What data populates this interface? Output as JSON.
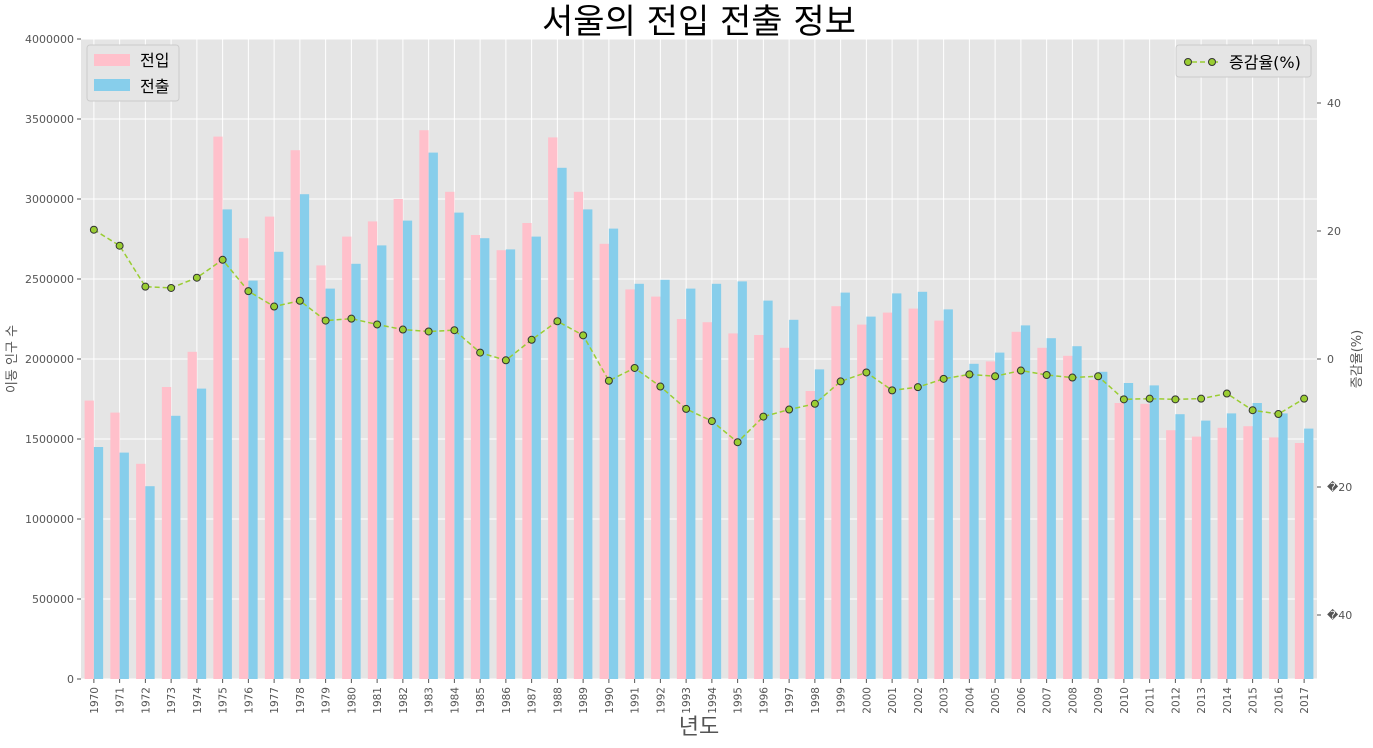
{
  "chart_data": {
    "type": "bar",
    "title": "서울의 전입 전출 정보",
    "xlabel": "년도",
    "ylabel": "이동 인구 수",
    "y2label": "증감율(%)",
    "ylim": [
      0,
      4000000
    ],
    "y2lim": [
      -50,
      50
    ],
    "yticks": [
      "0",
      "500000",
      "1000000",
      "1500000",
      "2000000",
      "2500000",
      "3000000",
      "3500000",
      "4000000"
    ],
    "y2ticks": [
      {
        "value": 40,
        "label": "40"
      },
      {
        "value": 20,
        "label": "20"
      },
      {
        "value": 0,
        "label": "0"
      },
      {
        "value": -20,
        "label": "�20"
      },
      {
        "value": -40,
        "label": "�40"
      }
    ],
    "grid": true,
    "categories": [
      "1970",
      "1971",
      "1972",
      "1973",
      "1974",
      "1975",
      "1976",
      "1977",
      "1978",
      "1979",
      "1980",
      "1981",
      "1982",
      "1983",
      "1984",
      "1985",
      "1986",
      "1987",
      "1988",
      "1989",
      "1990",
      "1991",
      "1992",
      "1993",
      "1994",
      "1995",
      "1996",
      "1997",
      "1998",
      "1999",
      "2000",
      "2001",
      "2002",
      "2003",
      "2004",
      "2005",
      "2006",
      "2007",
      "2008",
      "2009",
      "2010",
      "2011",
      "2012",
      "2013",
      "2014",
      "2015",
      "2016",
      "2017"
    ],
    "series": [
      {
        "name": "전입",
        "kind": "bar",
        "color": "#FFC0CB",
        "values": [
          1740000,
          1665000,
          1345000,
          1825000,
          2045000,
          3390000,
          2755000,
          2890000,
          3305000,
          2585000,
          2765000,
          2860000,
          3000000,
          3430000,
          3045000,
          2775000,
          2680000,
          2850000,
          3385000,
          3045000,
          2720000,
          2435000,
          2390000,
          2250000,
          2230000,
          2160000,
          2150000,
          2070000,
          1800000,
          2330000,
          2215000,
          2290000,
          2315000,
          2240000,
          1900000,
          1985000,
          2170000,
          2070000,
          2020000,
          1870000,
          1725000,
          1720000,
          1555000,
          1515000,
          1570000,
          1580000,
          1510000,
          1475000
        ]
      },
      {
        "name": "전출",
        "kind": "bar",
        "color": "#87CEEB",
        "values": [
          1450000,
          1415000,
          1205000,
          1645000,
          1815000,
          2935000,
          2490000,
          2670000,
          3030000,
          2440000,
          2595000,
          2710000,
          2865000,
          3290000,
          2915000,
          2755000,
          2685000,
          2765000,
          3195000,
          2935000,
          2815000,
          2470000,
          2495000,
          2440000,
          2470000,
          2485000,
          2365000,
          2245000,
          1935000,
          2415000,
          2265000,
          2410000,
          2420000,
          2310000,
          1970000,
          2040000,
          2210000,
          2130000,
          2080000,
          1920000,
          1850000,
          1835000,
          1655000,
          1615000,
          1660000,
          1725000,
          1660000,
          1565000
        ]
      },
      {
        "name": "증감율(%)",
        "kind": "line",
        "color": "#9ACD32",
        "axis": "right",
        "values": [
          20.2,
          17.7,
          11.3,
          11.1,
          12.7,
          15.5,
          10.6,
          8.2,
          9.1,
          6.0,
          6.3,
          5.4,
          4.6,
          4.3,
          4.5,
          1.0,
          -0.2,
          3.0,
          5.9,
          3.7,
          -3.4,
          -1.4,
          -4.3,
          -7.8,
          -9.7,
          -13.0,
          -9.0,
          -7.9,
          -7.0,
          -3.5,
          -2.1,
          -4.9,
          -4.4,
          -3.1,
          -2.4,
          -2.7,
          -1.8,
          -2.5,
          -2.9,
          -2.7,
          -6.3,
          -6.2,
          -6.3,
          -6.2,
          -5.4,
          -8.0,
          -8.6,
          -6.2
        ]
      }
    ],
    "legend_left": "top-left",
    "legend_right": "top-right"
  }
}
